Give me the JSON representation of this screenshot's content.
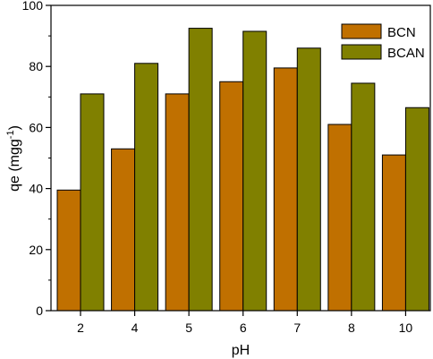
{
  "chart_data": {
    "type": "bar",
    "categories": [
      "2",
      "4",
      "5",
      "6",
      "7",
      "8",
      "10"
    ],
    "series": [
      {
        "name": "BCN",
        "values": [
          39.5,
          53,
          71,
          75,
          79.5,
          61,
          51
        ],
        "color": "#c07000"
      },
      {
        "name": "BCAN",
        "values": [
          71,
          81,
          92.5,
          91.5,
          86,
          74.5,
          66.5
        ],
        "color": "#808000"
      }
    ],
    "xlabel": "pH",
    "ylabel": {
      "base": "qe (mgg",
      "sup": "-1",
      "close": ")"
    },
    "ylim": [
      0,
      100
    ],
    "yticks": [
      0,
      20,
      40,
      60,
      80,
      100
    ],
    "legend_position": "top-right",
    "grid": false
  }
}
